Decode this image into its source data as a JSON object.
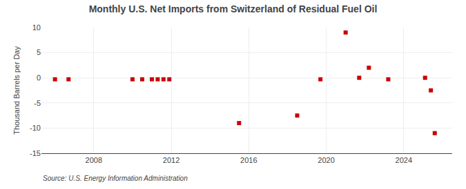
{
  "chart_data": {
    "type": "scatter",
    "title": "Monthly U.S. Net Imports from Switzerland of Residual Fuel Oil",
    "y_label": "Thousand Barrels per Day",
    "annotations": [
      "Source: U.S. Energy Information Administration"
    ],
    "x": [
      2006.0,
      2006.7,
      2010.0,
      2010.5,
      2011.0,
      2011.3,
      2011.6,
      2011.9,
      2015.5,
      2018.5,
      2019.7,
      2021.0,
      2021.7,
      2022.2,
      2023.2,
      2025.1,
      2025.4,
      2025.6
    ],
    "values": [
      -0.3,
      -0.3,
      -0.3,
      -0.3,
      -0.3,
      -0.3,
      -0.3,
      -0.3,
      -9.0,
      -7.5,
      -0.3,
      9.0,
      0.0,
      2.0,
      -0.3,
      0.0,
      -2.5,
      -11.0
    ],
    "color": "#cc0000",
    "marker": "square",
    "xlim": [
      2005.3,
      2026.5
    ],
    "xticks": [
      2008,
      2012,
      2016,
      2020,
      2024
    ],
    "ylim": [
      -15,
      10
    ],
    "yticks": [
      -15,
      -10,
      -5,
      0,
      5,
      10
    ],
    "grid": true
  }
}
